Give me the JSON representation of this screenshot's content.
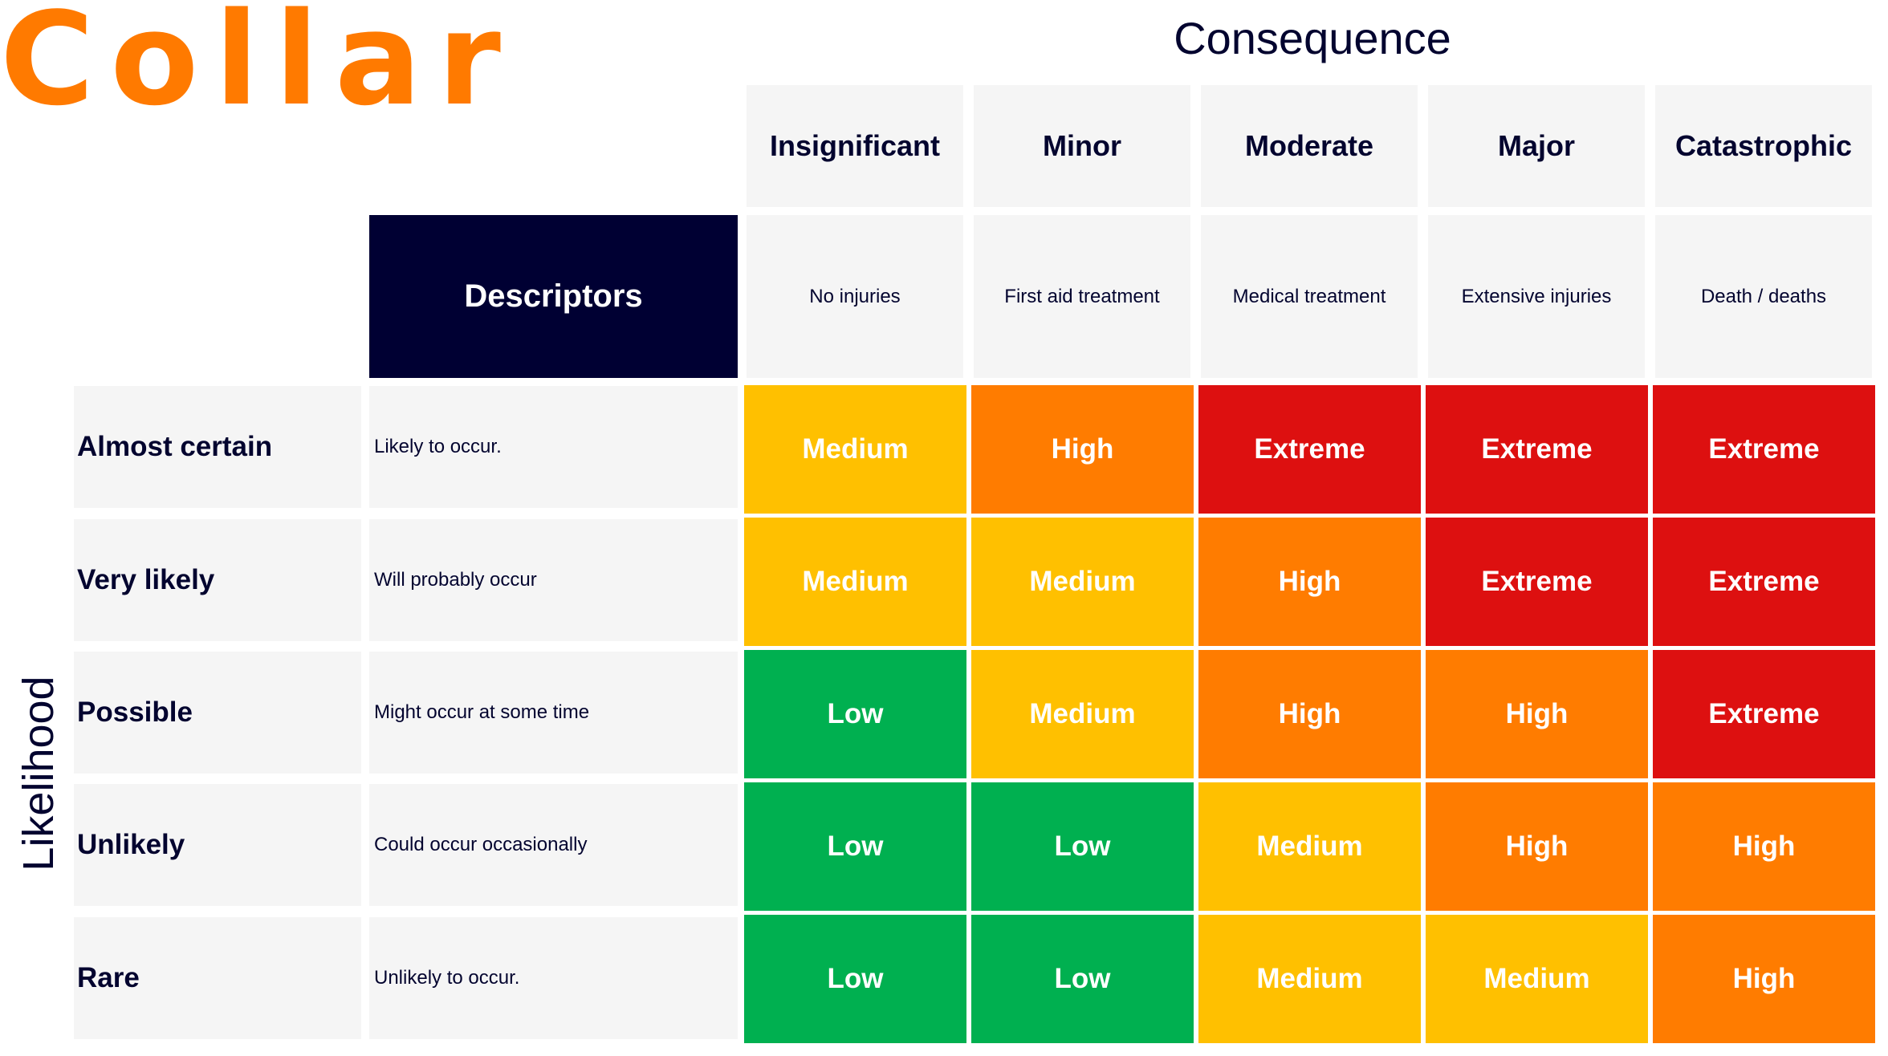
{
  "logo_text": "Collar",
  "consequence_title": "Consequence",
  "likelihood_title": "Likelihood",
  "descriptors_label": "Descriptors",
  "consequences": [
    {
      "label": "Insignificant",
      "desc": "No injuries"
    },
    {
      "label": "Minor",
      "desc": "First aid treatment"
    },
    {
      "label": "Moderate",
      "desc": "Medical treatment"
    },
    {
      "label": "Major",
      "desc": "Extensive injuries"
    },
    {
      "label": "Catastrophic",
      "desc": "Death / deaths"
    }
  ],
  "likelihoods": [
    {
      "label": "Almost certain",
      "desc": "Likely to occur.",
      "ratings": [
        "Medium",
        "High",
        "Extreme",
        "Extreme",
        "Extreme"
      ]
    },
    {
      "label": "Very likely",
      "desc": "Will probably occur",
      "ratings": [
        "Medium",
        "Medium",
        "High",
        "Extreme",
        "Extreme"
      ]
    },
    {
      "label": "Possible",
      "desc": "Might occur at some time",
      "ratings": [
        "Low",
        "Medium",
        "High",
        "High",
        "Extreme"
      ]
    },
    {
      "label": "Unlikely",
      "desc": "Could occur occasionally",
      "ratings": [
        "Low",
        "Low",
        "Medium",
        "High",
        "High"
      ]
    },
    {
      "label": "Rare",
      "desc": "Unlikely to occur.",
      "ratings": [
        "Low",
        "Low",
        "Medium",
        "Medium",
        "High"
      ]
    }
  ],
  "colors": {
    "brand": "#ff7a00",
    "navy": "#000033",
    "Low": "#00b050",
    "Medium": "#ffc000",
    "High": "#ff7c00",
    "Extreme": "#dd1010"
  }
}
